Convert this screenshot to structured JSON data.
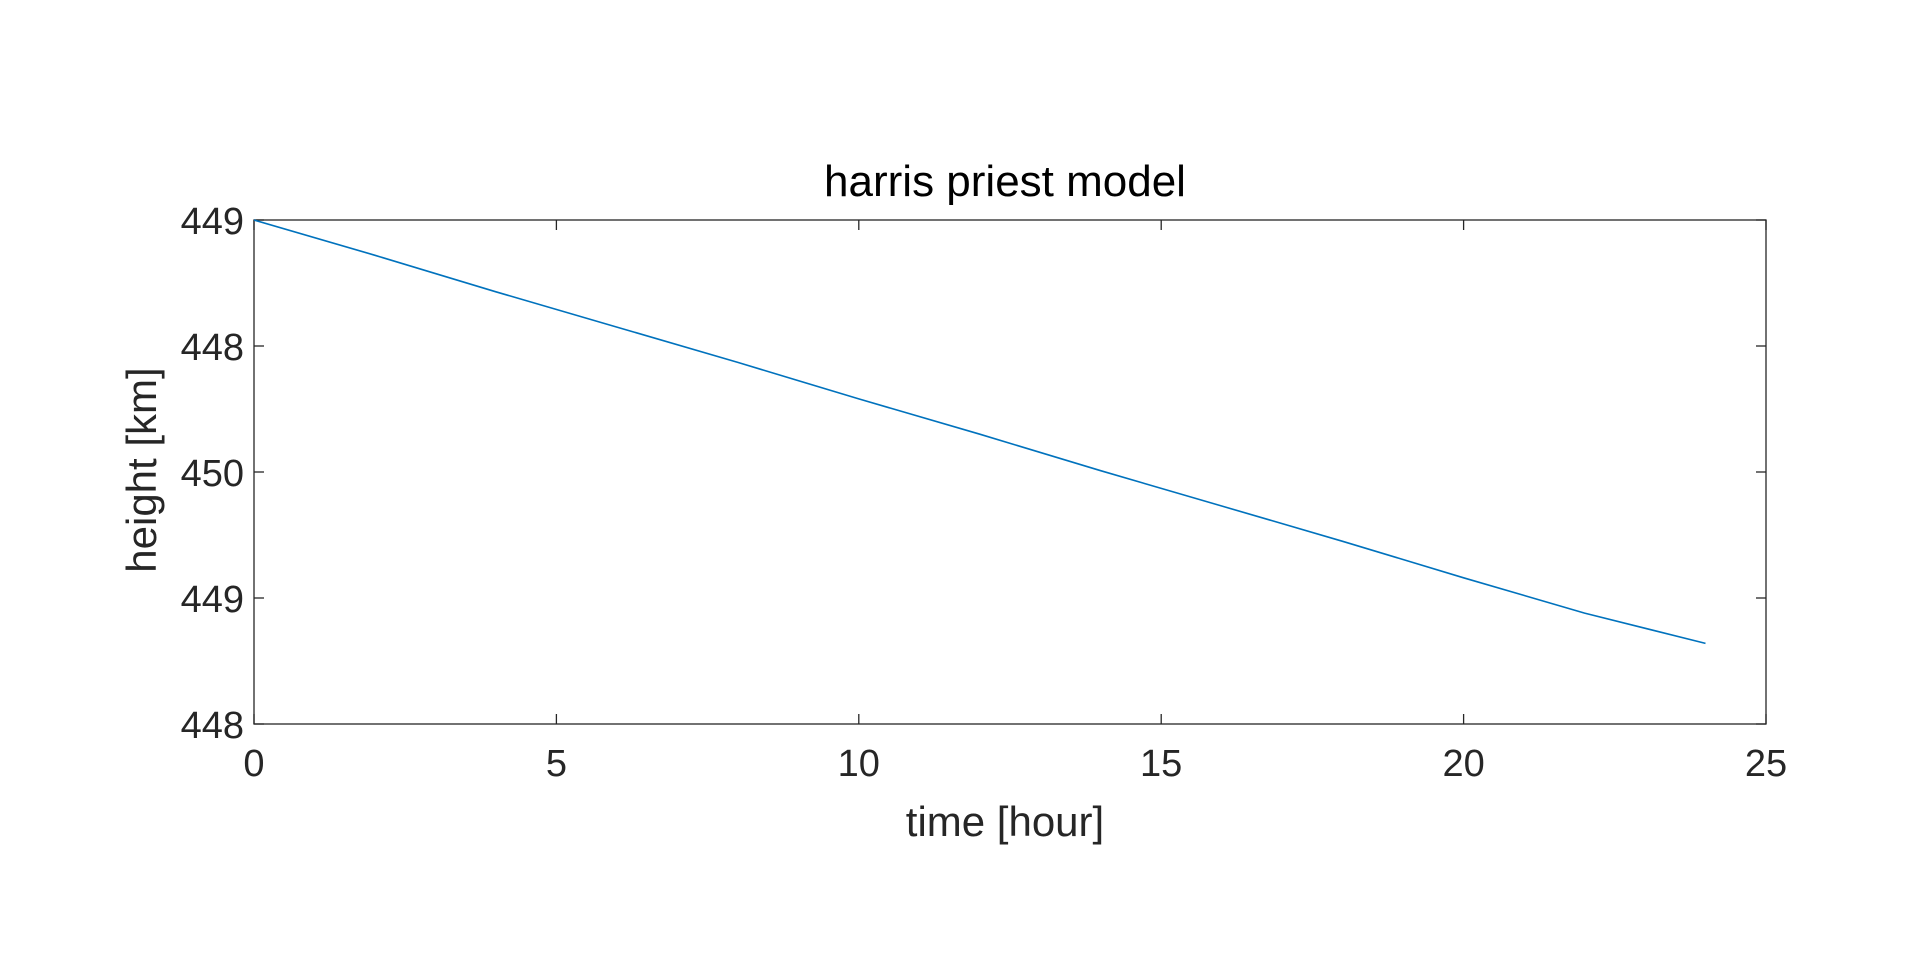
{
  "chart_data": {
    "type": "line",
    "title": "harris priest model",
    "xlabel": "time [hour]",
    "ylabel": "height [km]",
    "xlim": [
      0,
      25
    ],
    "ylim": [
      0,
      4
    ],
    "xticks": [
      0,
      5,
      10,
      15,
      20,
      25
    ],
    "xtick_labels": [
      "0",
      "5",
      "10",
      "15",
      "20",
      "25"
    ],
    "yticks": [
      0,
      1,
      2,
      3,
      4
    ],
    "ytick_labels": [
      "448",
      "449",
      "450",
      "448",
      "449"
    ],
    "grid": false,
    "legend": "none",
    "series": [
      {
        "color": "#0072BD",
        "x": [
          0,
          2,
          4,
          6,
          8,
          10,
          12,
          14,
          16,
          18,
          20,
          22,
          24
        ],
        "y": [
          4.0,
          3.72,
          3.43,
          3.15,
          2.87,
          2.58,
          2.3,
          2.01,
          1.73,
          1.45,
          1.16,
          0.88,
          0.64
        ]
      }
    ]
  }
}
